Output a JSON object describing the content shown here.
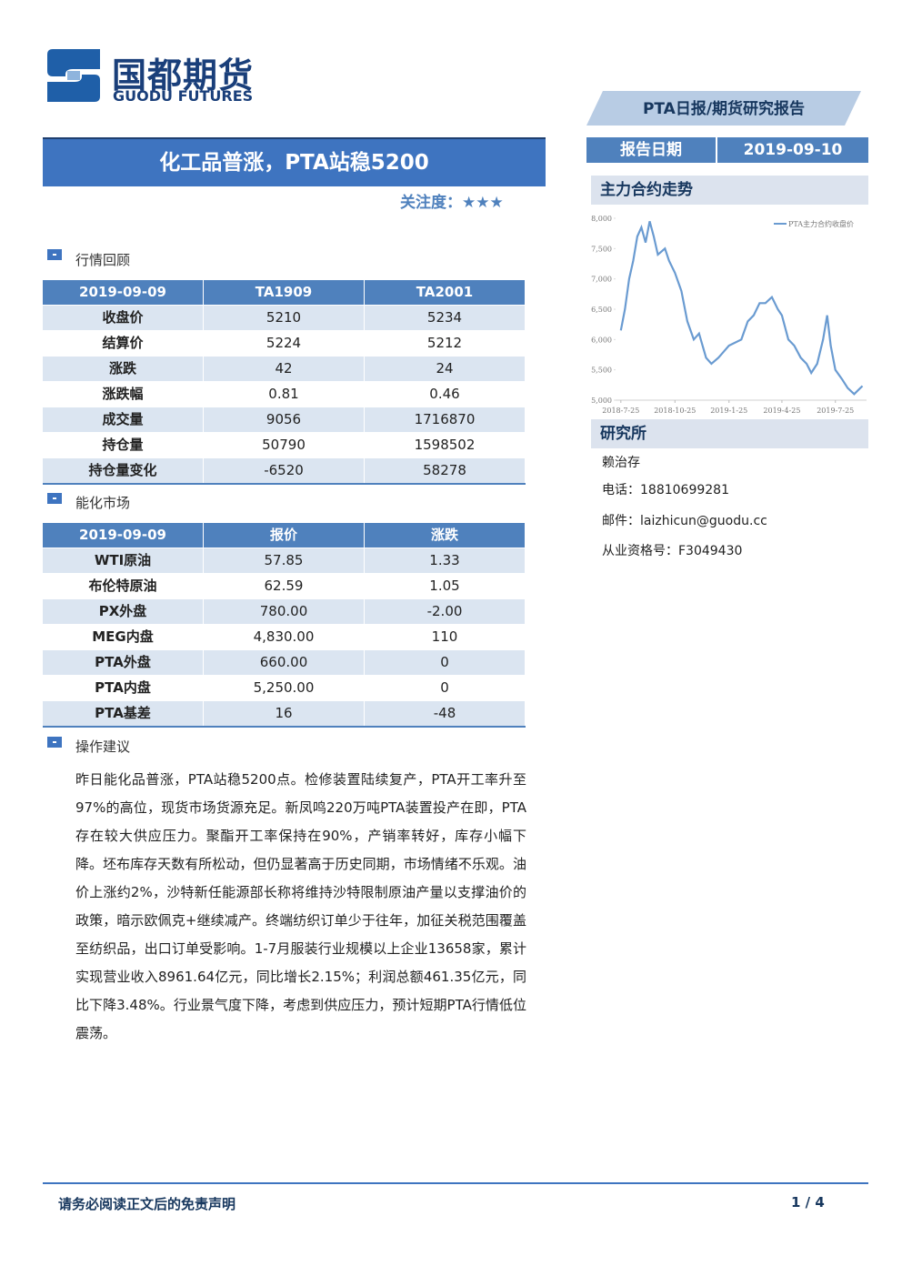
{
  "header": {
    "logo_cn": "国都期货",
    "logo_en": "GUODU FUTURES",
    "report_type": "PTA日报/期货研究报告",
    "date_label": "报告日期",
    "date": "2019-09-10"
  },
  "title": "化工品普涨，PTA站稳5200",
  "attention": {
    "label": "关注度：",
    "stars": "★★★"
  },
  "market_review": {
    "heading": "行情回顾",
    "columns": [
      "2019-09-09",
      "TA1909",
      "TA2001"
    ],
    "rows": [
      [
        "收盘价",
        "5210",
        "5234"
      ],
      [
        "结算价",
        "5224",
        "5212"
      ],
      [
        "涨跌",
        "42",
        "24"
      ],
      [
        "涨跌幅",
        "0.81",
        "0.46"
      ],
      [
        "成交量",
        "9056",
        "1716870"
      ],
      [
        "持仓量",
        "50790",
        "1598502"
      ],
      [
        "持仓量变化",
        "-6520",
        "58278"
      ]
    ]
  },
  "energy_market": {
    "heading": "能化市场",
    "columns": [
      "2019-09-09",
      "报价",
      "涨跌"
    ],
    "rows": [
      [
        "WTI原油",
        "57.85",
        "1.33"
      ],
      [
        "布伦特原油",
        "62.59",
        "1.05"
      ],
      [
        "PX外盘",
        "780.00",
        "-2.00"
      ],
      [
        "MEG内盘",
        "4,830.00",
        "110"
      ],
      [
        "PTA外盘",
        "660.00",
        "0"
      ],
      [
        "PTA内盘",
        "5,250.00",
        "0"
      ],
      [
        "PTA基差",
        "16",
        "-48"
      ]
    ]
  },
  "advice": {
    "heading": "操作建议",
    "text": "昨日能化品普涨，PTA站稳5200点。检修装置陆续复产，PTA开工率升至97%的高位，现货市场货源充足。新凤鸣220万吨PTA装置投产在即，PTA存在较大供应压力。聚酯开工率保持在90%，产销率转好，库存小幅下降。坯布库存天数有所松动，但仍显著高于历史同期，市场情绪不乐观。油价上涨约2%，沙特新任能源部长称将维持沙特限制原油产量以支撑油价的政策，暗示欧佩克+继续减产。终端纺织订单少于往年，加征关税范围覆盖至纺织品，出口订单受影响。1-7月服装行业规模以上企业13658家，累计实现营业收入8961.64亿元，同比增长2.15%；利润总额461.35亿元，同比下降3.48%。行业景气度下降，考虑到供应压力，预计短期PTA行情低位震荡。"
  },
  "chart_heading": "主力合约走势",
  "chart_data": {
    "type": "line",
    "x": [
      "2018-7-25",
      "2018-8-1",
      "2018-8-8",
      "2018-8-15",
      "2018-8-22",
      "2018-8-29",
      "2018-9-5",
      "2018-9-12",
      "2018-9-19",
      "2018-9-26",
      "2018-10-8",
      "2018-10-15",
      "2018-10-25",
      "2018-11-5",
      "2018-11-15",
      "2018-11-26",
      "2018-12-5",
      "2018-12-17",
      "2018-12-26",
      "2019-1-7",
      "2019-1-16",
      "2019-1-25",
      "2019-2-15",
      "2019-2-26",
      "2019-3-8",
      "2019-3-18",
      "2019-3-28",
      "2019-4-8",
      "2019-4-18",
      "2019-4-25",
      "2019-5-6",
      "2019-5-16",
      "2019-5-27",
      "2019-6-6",
      "2019-6-14",
      "2019-6-24",
      "2019-7-4",
      "2019-7-11",
      "2019-7-17",
      "2019-7-25",
      "2019-8-5",
      "2019-8-15",
      "2019-8-26",
      "2019-9-9"
    ],
    "series": [
      {
        "name": "PTA主力合约收盘价",
        "color": "#6a9bd1",
        "values": [
          6150,
          6500,
          7000,
          7300,
          7700,
          7850,
          7600,
          7950,
          7700,
          7400,
          7500,
          7300,
          7100,
          6800,
          6300,
          6000,
          6100,
          5700,
          5600,
          5700,
          5800,
          5900,
          6000,
          6300,
          6400,
          6600,
          6600,
          6700,
          6500,
          6400,
          6000,
          5900,
          5700,
          5600,
          5450,
          5600,
          6000,
          6400,
          5900,
          5500,
          5350,
          5200,
          5100,
          5234
        ]
      }
    ],
    "xlim": [
      "2018-7-16",
      "2019-9-16"
    ],
    "xticks": [
      "2018-7-25",
      "2018-10-25",
      "2019-1-25",
      "2019-4-25",
      "2019-7-25"
    ],
    "ylim": [
      5000,
      8000
    ],
    "yticks": [
      {
        "value": 5000,
        "label": "5,000"
      },
      {
        "value": 5500,
        "label": "5,500"
      },
      {
        "value": 6000,
        "label": "6,000"
      },
      {
        "value": 6500,
        "label": "6,500"
      },
      {
        "value": 7000,
        "label": "7,000"
      },
      {
        "value": 7500,
        "label": "7,500"
      },
      {
        "value": 8000,
        "label": "8,000"
      }
    ],
    "legend": "top-right"
  },
  "research": {
    "heading": "研究所",
    "name": "赖治存",
    "phone": "电话：18810699281",
    "email": "邮件：laizhicun@guodu.cc",
    "license": "从业资格号：F3049430"
  },
  "footer": {
    "disclaimer": "请务必阅读正文后的免责声明",
    "page": "1 / 4"
  }
}
